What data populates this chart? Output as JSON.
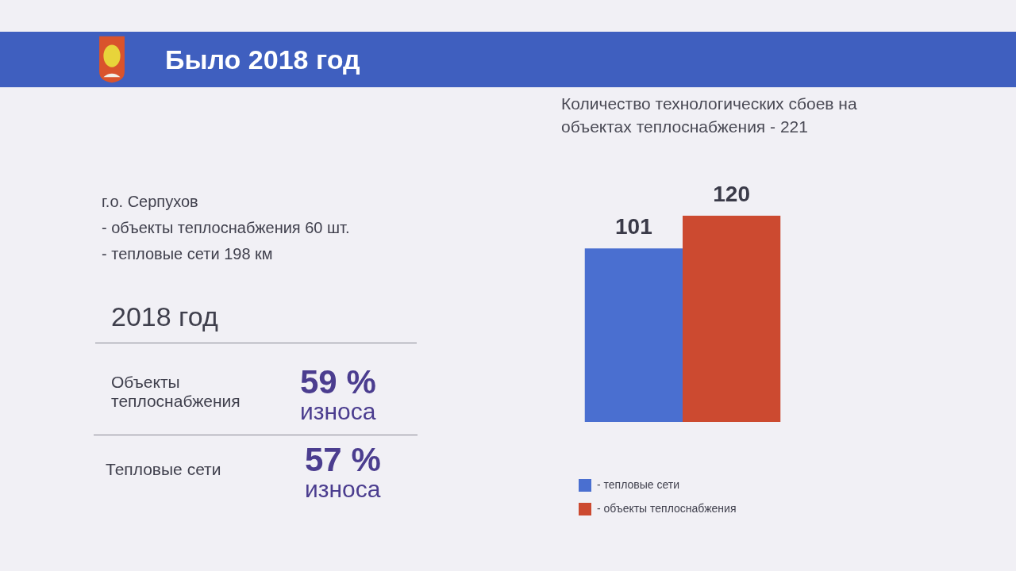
{
  "chart_data": {
    "type": "bar",
    "title": "Количество технологических сбоев на объектах теплоснабжения - 221",
    "categories": [
      null
    ],
    "series": [
      {
        "name": "- тепловые сети",
        "color": "#4a6fd0",
        "values": [
          101
        ]
      },
      {
        "name": "- объекты теплоснабжения",
        "color": "#cc4a30",
        "values": [
          120
        ]
      }
    ],
    "data_labels": true,
    "legend": "bottom left",
    "tick_labels": false,
    "annotations": [
      "Было 2018 год",
      "г.о. Серпухов",
      "- объекты теплоснабжения 60 шт.",
      "- тепловые сети 198 км",
      "2018 год",
      "Объекты теплоснабжения",
      "59 %",
      "износа",
      "Тепловые сети",
      "57 %",
      "износа"
    ]
  }
}
